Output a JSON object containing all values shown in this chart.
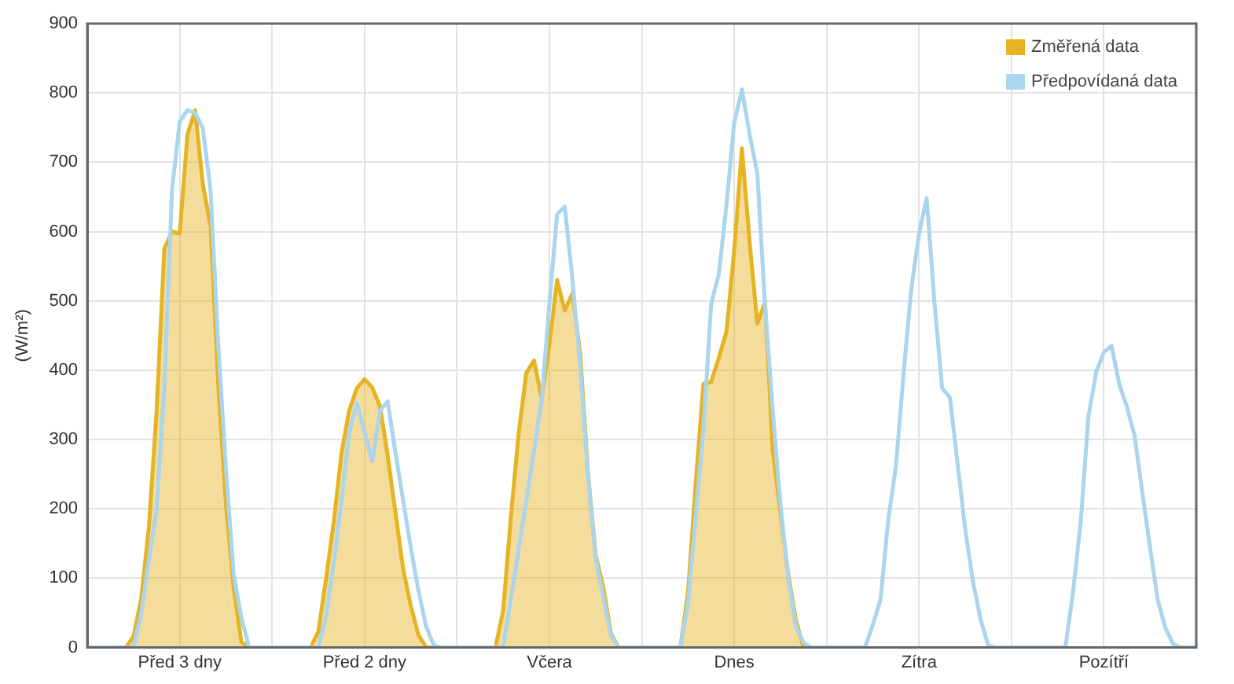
{
  "chart_data": {
    "type": "area",
    "ylabel": "(W/m²)",
    "categories": [
      null,
      null,
      null,
      null,
      null,
      null,
      null,
      null,
      null,
      null,
      null,
      null,
      "Před 3 dny",
      null,
      null,
      null,
      null,
      null,
      null,
      null,
      null,
      null,
      null,
      null,
      null,
      null,
      null,
      null,
      null,
      null,
      null,
      null,
      null,
      null,
      null,
      null,
      "Před 2 dny",
      null,
      null,
      null,
      null,
      null,
      null,
      null,
      null,
      null,
      null,
      null,
      null,
      null,
      null,
      null,
      null,
      null,
      null,
      null,
      null,
      null,
      null,
      null,
      "Včera",
      null,
      null,
      null,
      null,
      null,
      null,
      null,
      null,
      null,
      null,
      null,
      null,
      null,
      null,
      null,
      null,
      null,
      null,
      null,
      null,
      null,
      null,
      null,
      "Dnes",
      null,
      null,
      null,
      null,
      null,
      null,
      null,
      null,
      null,
      null,
      null,
      null,
      null,
      null,
      null,
      null,
      null,
      null,
      null,
      null,
      null,
      null,
      null,
      "Zítra",
      null,
      null,
      null,
      null,
      null,
      null,
      null,
      null,
      null,
      null,
      null,
      null,
      null,
      null,
      null,
      null,
      null,
      null,
      null,
      null,
      null,
      null,
      null,
      "Pozítří",
      null,
      null,
      null,
      null,
      null,
      null,
      null,
      null,
      null,
      null,
      null,
      null
    ],
    "ylim": [
      0,
      900
    ],
    "yticks": [
      0,
      100,
      200,
      300,
      400,
      500,
      600,
      700,
      800,
      900
    ],
    "grid": true,
    "legend": "top right",
    "marker": "none",
    "series": [
      {
        "name": "Změřená data",
        "type": "area",
        "color": "#e6b422",
        "values": [
          0,
          0,
          0,
          0,
          0,
          0,
          16,
          71,
          174,
          342,
          575,
          600,
          597,
          740,
          775,
          668,
          608,
          380,
          207,
          87,
          8,
          0,
          0,
          0,
          0,
          0,
          0,
          0,
          0,
          0,
          23,
          99,
          181,
          280,
          342,
          374,
          387,
          375,
          348,
          277,
          195,
          114,
          60,
          18,
          0,
          0,
          0,
          0,
          0,
          0,
          0,
          0,
          0,
          0,
          54,
          188,
          308,
          396,
          414,
          360,
          438,
          530,
          486,
          511,
          424,
          253,
          134,
          87,
          20,
          0,
          0,
          0,
          0,
          0,
          0,
          0,
          0,
          0,
          79,
          237,
          380,
          383,
          418,
          456,
          573,
          720,
          585,
          467,
          498,
          285,
          195,
          107,
          40,
          0,
          0,
          null,
          null,
          null,
          null,
          null,
          null,
          null,
          null,
          null,
          null,
          null,
          null,
          null,
          null,
          null,
          null,
          null,
          null,
          null,
          null,
          null,
          null,
          null,
          null,
          null,
          null,
          null,
          null,
          null,
          null,
          null,
          null,
          null,
          null,
          null,
          null,
          null,
          null,
          null,
          null,
          null,
          null,
          null,
          null,
          null,
          null,
          null,
          null,
          null,
          null
        ]
      },
      {
        "name": "Předpovídaná data",
        "type": "line",
        "color": "#a9d5ee",
        "values": [
          0,
          0,
          0,
          0,
          0,
          0,
          0,
          49,
          127,
          199,
          377,
          661,
          759,
          775,
          771,
          749,
          659,
          437,
          258,
          106,
          43,
          0,
          0,
          0,
          0,
          0,
          0,
          0,
          0,
          0,
          0,
          46,
          122,
          211,
          309,
          353,
          310,
          269,
          341,
          355,
          282,
          213,
          144,
          82,
          30,
          3,
          0,
          0,
          0,
          0,
          0,
          0,
          0,
          0,
          0,
          70,
          141,
          212,
          284,
          357,
          496,
          625,
          636,
          530,
          405,
          250,
          129,
          73,
          17,
          0,
          0,
          0,
          0,
          0,
          0,
          0,
          0,
          0,
          63,
          190,
          314,
          495,
          539,
          639,
          757,
          805,
          740,
          684,
          494,
          342,
          207,
          101,
          31,
          7,
          0,
          0,
          0,
          0,
          0,
          0,
          0,
          0,
          33,
          69,
          184,
          262,
          396,
          518,
          597,
          648,
          498,
          374,
          361,
          266,
          170,
          95,
          40,
          3,
          0,
          0,
          0,
          0,
          0,
          0,
          0,
          0,
          0,
          0,
          80,
          182,
          334,
          397,
          426,
          435,
          380,
          347,
          305,
          223,
          144,
          68,
          28,
          5,
          0,
          0,
          0
        ]
      }
    ]
  }
}
